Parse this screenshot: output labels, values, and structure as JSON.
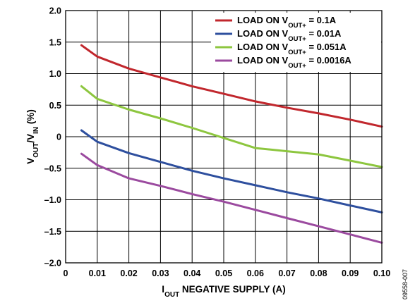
{
  "chart_data": {
    "type": "line",
    "xlabel": {
      "main": "I",
      "sub": "OUT",
      "rest": " NEGATIVE SUPPLY (A)"
    },
    "ylabel": {
      "v1": "V",
      "s1": "OUT",
      "mid": "/V",
      "s2": "IN",
      "rest": " (%)"
    },
    "xlim": [
      0,
      0.1
    ],
    "ylim": [
      -2.0,
      2.0
    ],
    "xticks": [
      0,
      0.01,
      0.02,
      0.03,
      0.04,
      0.05,
      0.06,
      0.07,
      0.08,
      0.09,
      0.1
    ],
    "xtick_labels": [
      "0",
      "0.01",
      "0.02",
      "0.03",
      "0.04",
      "0.05",
      "0.06",
      "0.07",
      "0.08",
      "0.09",
      "0.10"
    ],
    "yticks": [
      2.0,
      1.5,
      1.0,
      0.5,
      0,
      -0.5,
      -1.0,
      -1.5,
      -2.0
    ],
    "ytick_labels": [
      "2.0",
      "1.5",
      "1.0",
      "0.5",
      "0",
      "–0.5",
      "–1.0",
      "–1.5",
      "–2.0"
    ],
    "grid": true,
    "legend_position": "top-right",
    "series": [
      {
        "label_pre": "LOAD ON V",
        "label_sub": "OUT+",
        "label_post": " = 0.1A",
        "color": "#c1272d",
        "x": [
          0.005,
          0.01,
          0.02,
          0.03,
          0.04,
          0.05,
          0.06,
          0.07,
          0.08,
          0.09,
          0.1
        ],
        "y": [
          1.45,
          1.27,
          1.08,
          0.94,
          0.8,
          0.68,
          0.56,
          0.46,
          0.37,
          0.27,
          0.16
        ]
      },
      {
        "label_pre": "LOAD ON V",
        "label_sub": "OUT+",
        "label_post": " = 0.01A",
        "color": "#2e4f9e",
        "x": [
          0.005,
          0.01,
          0.02,
          0.03,
          0.04,
          0.05,
          0.06,
          0.07,
          0.08,
          0.09,
          0.1
        ],
        "y": [
          0.1,
          -0.08,
          -0.26,
          -0.4,
          -0.54,
          -0.66,
          -0.77,
          -0.88,
          -0.98,
          -1.09,
          -1.2
        ]
      },
      {
        "label_pre": "LOAD ON V",
        "label_sub": "OUT+",
        "label_post": " = 0.051A",
        "color": "#8dc63f",
        "x": [
          0.005,
          0.01,
          0.02,
          0.03,
          0.04,
          0.05,
          0.06,
          0.07,
          0.08,
          0.09,
          0.1
        ],
        "y": [
          0.8,
          0.6,
          0.43,
          0.29,
          0.14,
          -0.02,
          -0.18,
          -0.23,
          -0.28,
          -0.38,
          -0.48
        ]
      },
      {
        "label_pre": "LOAD ON V",
        "label_sub": "OUT+",
        "label_post": " = 0.0016A",
        "color": "#9b4a9f",
        "x": [
          0.005,
          0.01,
          0.02,
          0.03,
          0.04,
          0.05,
          0.06,
          0.07,
          0.08,
          0.09,
          0.1
        ],
        "y": [
          -0.27,
          -0.45,
          -0.66,
          -0.78,
          -0.91,
          -1.03,
          -1.16,
          -1.29,
          -1.42,
          -1.55,
          -1.68
        ]
      }
    ],
    "figure_code": "09558-007"
  }
}
